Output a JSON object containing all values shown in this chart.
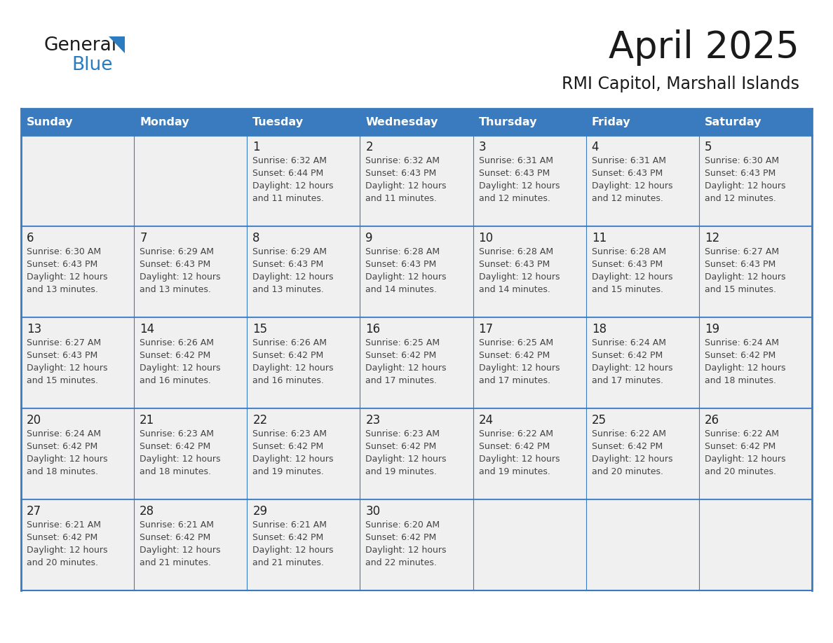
{
  "title": "April 2025",
  "subtitle": "RMI Capitol, Marshall Islands",
  "days_of_week": [
    "Sunday",
    "Monday",
    "Tuesday",
    "Wednesday",
    "Thursday",
    "Friday",
    "Saturday"
  ],
  "header_bg": "#3a7bbf",
  "header_text": "#ffffff",
  "cell_bg": "#f0f0f0",
  "border_color": "#3a7bbf",
  "row_divider_color": "#4a86c8",
  "day_number_color": "#222222",
  "text_color": "#444444",
  "title_color": "#1a1a1a",
  "subtitle_color": "#1a1a1a",
  "logo_general_color": "#1a1a1a",
  "logo_blue_color": "#2a7bc0",
  "weeks": [
    [
      {
        "day": "",
        "sunrise": "",
        "sunset": "",
        "daylight": ""
      },
      {
        "day": "",
        "sunrise": "",
        "sunset": "",
        "daylight": ""
      },
      {
        "day": "1",
        "sunrise": "Sunrise: 6:32 AM",
        "sunset": "Sunset: 6:44 PM",
        "daylight": "Daylight: 12 hours\nand 11 minutes."
      },
      {
        "day": "2",
        "sunrise": "Sunrise: 6:32 AM",
        "sunset": "Sunset: 6:43 PM",
        "daylight": "Daylight: 12 hours\nand 11 minutes."
      },
      {
        "day": "3",
        "sunrise": "Sunrise: 6:31 AM",
        "sunset": "Sunset: 6:43 PM",
        "daylight": "Daylight: 12 hours\nand 12 minutes."
      },
      {
        "day": "4",
        "sunrise": "Sunrise: 6:31 AM",
        "sunset": "Sunset: 6:43 PM",
        "daylight": "Daylight: 12 hours\nand 12 minutes."
      },
      {
        "day": "5",
        "sunrise": "Sunrise: 6:30 AM",
        "sunset": "Sunset: 6:43 PM",
        "daylight": "Daylight: 12 hours\nand 12 minutes."
      }
    ],
    [
      {
        "day": "6",
        "sunrise": "Sunrise: 6:30 AM",
        "sunset": "Sunset: 6:43 PM",
        "daylight": "Daylight: 12 hours\nand 13 minutes."
      },
      {
        "day": "7",
        "sunrise": "Sunrise: 6:29 AM",
        "sunset": "Sunset: 6:43 PM",
        "daylight": "Daylight: 12 hours\nand 13 minutes."
      },
      {
        "day": "8",
        "sunrise": "Sunrise: 6:29 AM",
        "sunset": "Sunset: 6:43 PM",
        "daylight": "Daylight: 12 hours\nand 13 minutes."
      },
      {
        "day": "9",
        "sunrise": "Sunrise: 6:28 AM",
        "sunset": "Sunset: 6:43 PM",
        "daylight": "Daylight: 12 hours\nand 14 minutes."
      },
      {
        "day": "10",
        "sunrise": "Sunrise: 6:28 AM",
        "sunset": "Sunset: 6:43 PM",
        "daylight": "Daylight: 12 hours\nand 14 minutes."
      },
      {
        "day": "11",
        "sunrise": "Sunrise: 6:28 AM",
        "sunset": "Sunset: 6:43 PM",
        "daylight": "Daylight: 12 hours\nand 15 minutes."
      },
      {
        "day": "12",
        "sunrise": "Sunrise: 6:27 AM",
        "sunset": "Sunset: 6:43 PM",
        "daylight": "Daylight: 12 hours\nand 15 minutes."
      }
    ],
    [
      {
        "day": "13",
        "sunrise": "Sunrise: 6:27 AM",
        "sunset": "Sunset: 6:43 PM",
        "daylight": "Daylight: 12 hours\nand 15 minutes."
      },
      {
        "day": "14",
        "sunrise": "Sunrise: 6:26 AM",
        "sunset": "Sunset: 6:42 PM",
        "daylight": "Daylight: 12 hours\nand 16 minutes."
      },
      {
        "day": "15",
        "sunrise": "Sunrise: 6:26 AM",
        "sunset": "Sunset: 6:42 PM",
        "daylight": "Daylight: 12 hours\nand 16 minutes."
      },
      {
        "day": "16",
        "sunrise": "Sunrise: 6:25 AM",
        "sunset": "Sunset: 6:42 PM",
        "daylight": "Daylight: 12 hours\nand 17 minutes."
      },
      {
        "day": "17",
        "sunrise": "Sunrise: 6:25 AM",
        "sunset": "Sunset: 6:42 PM",
        "daylight": "Daylight: 12 hours\nand 17 minutes."
      },
      {
        "day": "18",
        "sunrise": "Sunrise: 6:24 AM",
        "sunset": "Sunset: 6:42 PM",
        "daylight": "Daylight: 12 hours\nand 17 minutes."
      },
      {
        "day": "19",
        "sunrise": "Sunrise: 6:24 AM",
        "sunset": "Sunset: 6:42 PM",
        "daylight": "Daylight: 12 hours\nand 18 minutes."
      }
    ],
    [
      {
        "day": "20",
        "sunrise": "Sunrise: 6:24 AM",
        "sunset": "Sunset: 6:42 PM",
        "daylight": "Daylight: 12 hours\nand 18 minutes."
      },
      {
        "day": "21",
        "sunrise": "Sunrise: 6:23 AM",
        "sunset": "Sunset: 6:42 PM",
        "daylight": "Daylight: 12 hours\nand 18 minutes."
      },
      {
        "day": "22",
        "sunrise": "Sunrise: 6:23 AM",
        "sunset": "Sunset: 6:42 PM",
        "daylight": "Daylight: 12 hours\nand 19 minutes."
      },
      {
        "day": "23",
        "sunrise": "Sunrise: 6:23 AM",
        "sunset": "Sunset: 6:42 PM",
        "daylight": "Daylight: 12 hours\nand 19 minutes."
      },
      {
        "day": "24",
        "sunrise": "Sunrise: 6:22 AM",
        "sunset": "Sunset: 6:42 PM",
        "daylight": "Daylight: 12 hours\nand 19 minutes."
      },
      {
        "day": "25",
        "sunrise": "Sunrise: 6:22 AM",
        "sunset": "Sunset: 6:42 PM",
        "daylight": "Daylight: 12 hours\nand 20 minutes."
      },
      {
        "day": "26",
        "sunrise": "Sunrise: 6:22 AM",
        "sunset": "Sunset: 6:42 PM",
        "daylight": "Daylight: 12 hours\nand 20 minutes."
      }
    ],
    [
      {
        "day": "27",
        "sunrise": "Sunrise: 6:21 AM",
        "sunset": "Sunset: 6:42 PM",
        "daylight": "Daylight: 12 hours\nand 20 minutes."
      },
      {
        "day": "28",
        "sunrise": "Sunrise: 6:21 AM",
        "sunset": "Sunset: 6:42 PM",
        "daylight": "Daylight: 12 hours\nand 21 minutes."
      },
      {
        "day": "29",
        "sunrise": "Sunrise: 6:21 AM",
        "sunset": "Sunset: 6:42 PM",
        "daylight": "Daylight: 12 hours\nand 21 minutes."
      },
      {
        "day": "30",
        "sunrise": "Sunrise: 6:20 AM",
        "sunset": "Sunset: 6:42 PM",
        "daylight": "Daylight: 12 hours\nand 22 minutes."
      },
      {
        "day": "",
        "sunrise": "",
        "sunset": "",
        "daylight": ""
      },
      {
        "day": "",
        "sunrise": "",
        "sunset": "",
        "daylight": ""
      },
      {
        "day": "",
        "sunrise": "",
        "sunset": "",
        "daylight": ""
      }
    ]
  ]
}
